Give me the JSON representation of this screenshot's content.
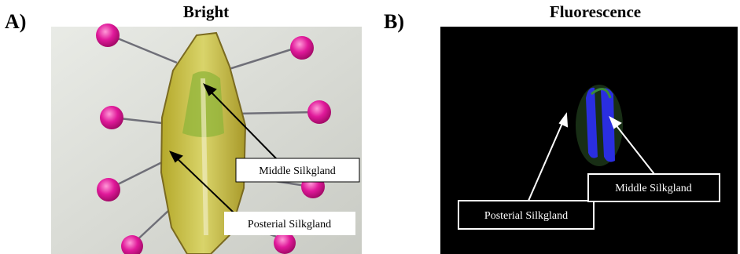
{
  "panel_a": {
    "label": "A)",
    "title": "Bright",
    "annotations": [
      "Middle Silkgland",
      "Posterial Silkgland"
    ]
  },
  "panel_b": {
    "label": "B)",
    "title": "Fluorescence",
    "annotations": [
      "Posterial Silkgland",
      "Middle Silkgland"
    ]
  }
}
